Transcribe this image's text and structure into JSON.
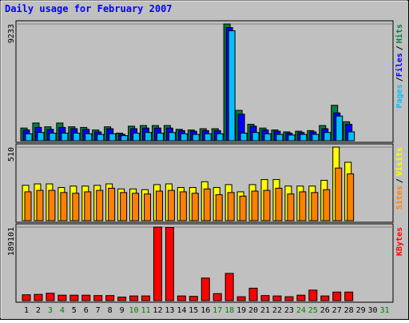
{
  "chart_data": [
    {
      "type": "bar",
      "title": "Daily usage for February 2007",
      "legend_separator": "/",
      "ylim": [
        0,
        9233
      ],
      "yticks": [
        9233
      ],
      "series": [
        {
          "name": "Hits",
          "color": "#008040",
          "values": [
            1000,
            1400,
            1100,
            1400,
            1100,
            1050,
            850,
            1100,
            600,
            1150,
            1200,
            1200,
            1200,
            900,
            850,
            950,
            950,
            9233,
            2400,
            1300,
            1000,
            850,
            700,
            750,
            800,
            1200,
            2800,
            1500,
            null,
            null,
            null
          ]
        },
        {
          "name": "Files",
          "color": "#0000ff",
          "values": [
            850,
            1050,
            900,
            1050,
            950,
            900,
            700,
            950,
            500,
            950,
            1000,
            1000,
            1000,
            800,
            750,
            800,
            800,
            8950,
            2100,
            1150,
            850,
            750,
            600,
            650,
            700,
            950,
            2200,
            1300,
            null,
            null,
            null
          ]
        },
        {
          "name": "Pages",
          "color": "#00c0ff",
          "values": [
            550,
            650,
            600,
            600,
            600,
            550,
            500,
            550,
            400,
            600,
            650,
            600,
            650,
            550,
            500,
            550,
            550,
            8700,
            600,
            650,
            550,
            500,
            450,
            500,
            500,
            650,
            1950,
            700,
            null,
            null,
            null
          ]
        }
      ]
    },
    {
      "type": "bar",
      "legend_separator": "/",
      "ylim": [
        0,
        510
      ],
      "yticks": [
        510
      ],
      "series": [
        {
          "name": "Visits",
          "color": "#ffff00",
          "values": [
            245,
            255,
            255,
            230,
            240,
            240,
            245,
            255,
            220,
            220,
            215,
            250,
            255,
            230,
            230,
            270,
            230,
            250,
            200,
            250,
            285,
            285,
            240,
            240,
            240,
            280,
            510,
            405,
            null,
            null,
            null
          ]
        },
        {
          "name": "Sites",
          "color": "#ff8000",
          "values": [
            200,
            210,
            210,
            195,
            190,
            200,
            210,
            225,
            195,
            190,
            185,
            205,
            210,
            200,
            190,
            220,
            180,
            195,
            170,
            205,
            210,
            225,
            185,
            200,
            195,
            215,
            365,
            325,
            null,
            null,
            null
          ]
        }
      ]
    },
    {
      "type": "bar",
      "ylim": [
        0,
        189101
      ],
      "yticks": [
        189101
      ],
      "categories": [
        "1",
        "2",
        "3",
        "4",
        "5",
        "6",
        "7",
        "8",
        "9",
        "10",
        "11",
        "12",
        "13",
        "14",
        "15",
        "16",
        "17",
        "18",
        "19",
        "20",
        "21",
        "22",
        "23",
        "24",
        "25",
        "26",
        "27",
        "28",
        "29",
        "30",
        "31"
      ],
      "category_colors": [
        "#000000",
        "#000000",
        "#008000",
        "#008000",
        "#000000",
        "#000000",
        "#000000",
        "#000000",
        "#000000",
        "#008000",
        "#008000",
        "#000000",
        "#000000",
        "#000000",
        "#000000",
        "#000000",
        "#008000",
        "#008000",
        "#000000",
        "#000000",
        "#000000",
        "#000000",
        "#000000",
        "#008000",
        "#008000",
        "#000000",
        "#000000",
        "#000000",
        "#000000",
        "#000000",
        "#008000"
      ],
      "series": [
        {
          "name": "KBytes",
          "color": "#ff0000",
          "values": [
            15000,
            16000,
            19000,
            14000,
            14000,
            14000,
            13000,
            13000,
            9000,
            12000,
            12000,
            189101,
            188000,
            12000,
            11000,
            58000,
            18000,
            70000,
            10000,
            32000,
            13000,
            12000,
            10000,
            14000,
            27000,
            12000,
            22000,
            22000,
            null,
            null,
            null
          ]
        }
      ]
    }
  ]
}
